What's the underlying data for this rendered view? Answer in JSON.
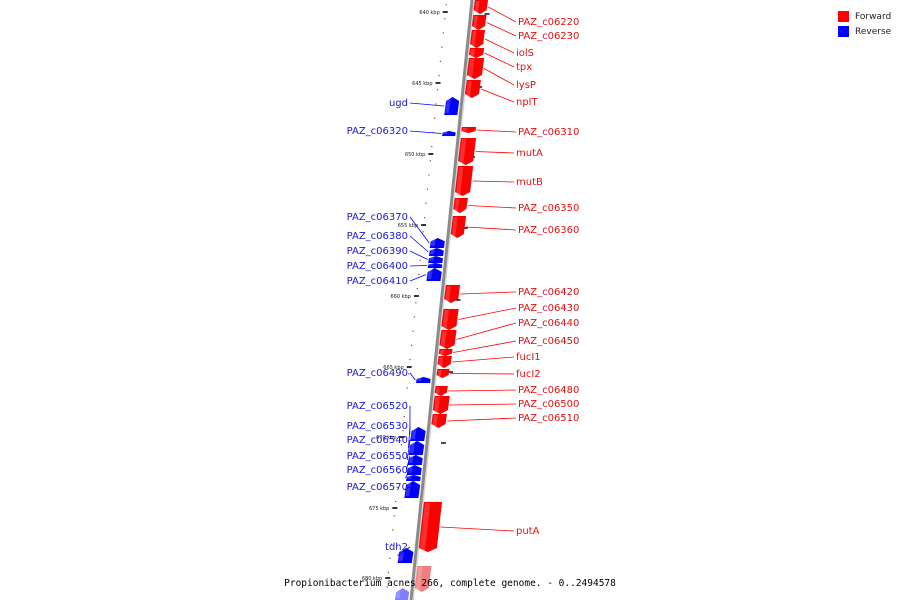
{
  "legend": {
    "forward_label": "Forward",
    "reverse_label": "Reverse",
    "forward_color": "#ff0000",
    "reverse_color": "#0000ff"
  },
  "footer_text": "Propionibacterium acnes 266, complete genome. - 0..2494578",
  "ticks": [
    "640 kbp",
    "645 kbp",
    "650 kbp",
    "655 kbp",
    "660 kbp",
    "665 kbp",
    "670 kbp",
    "675 kbp",
    "680 kbp"
  ],
  "forward_genes": [
    "PAZ_c06220",
    "PAZ_c06230",
    "iolS",
    "tpx",
    "lysP",
    "nplT",
    "PAZ_c06310",
    "mutA",
    "mutB",
    "PAZ_c06350",
    "PAZ_c06360",
    "PAZ_c06420",
    "PAZ_c06430",
    "PAZ_c06440",
    "PAZ_c06450",
    "fucI1",
    "fucI2",
    "PAZ_c06480",
    "PAZ_c06500",
    "PAZ_c06510",
    "putA"
  ],
  "reverse_genes": [
    "ugd",
    "PAZ_c06320",
    "PAZ_c06370",
    "PAZ_c06380",
    "PAZ_c06390",
    "PAZ_c06400",
    "PAZ_c06410",
    "PAZ_c06490",
    "PAZ_c06520",
    "PAZ_c06530",
    "PAZ_c06540",
    "PAZ_c06550",
    "PAZ_c06560",
    "PAZ_c06570",
    "tdh2"
  ]
}
